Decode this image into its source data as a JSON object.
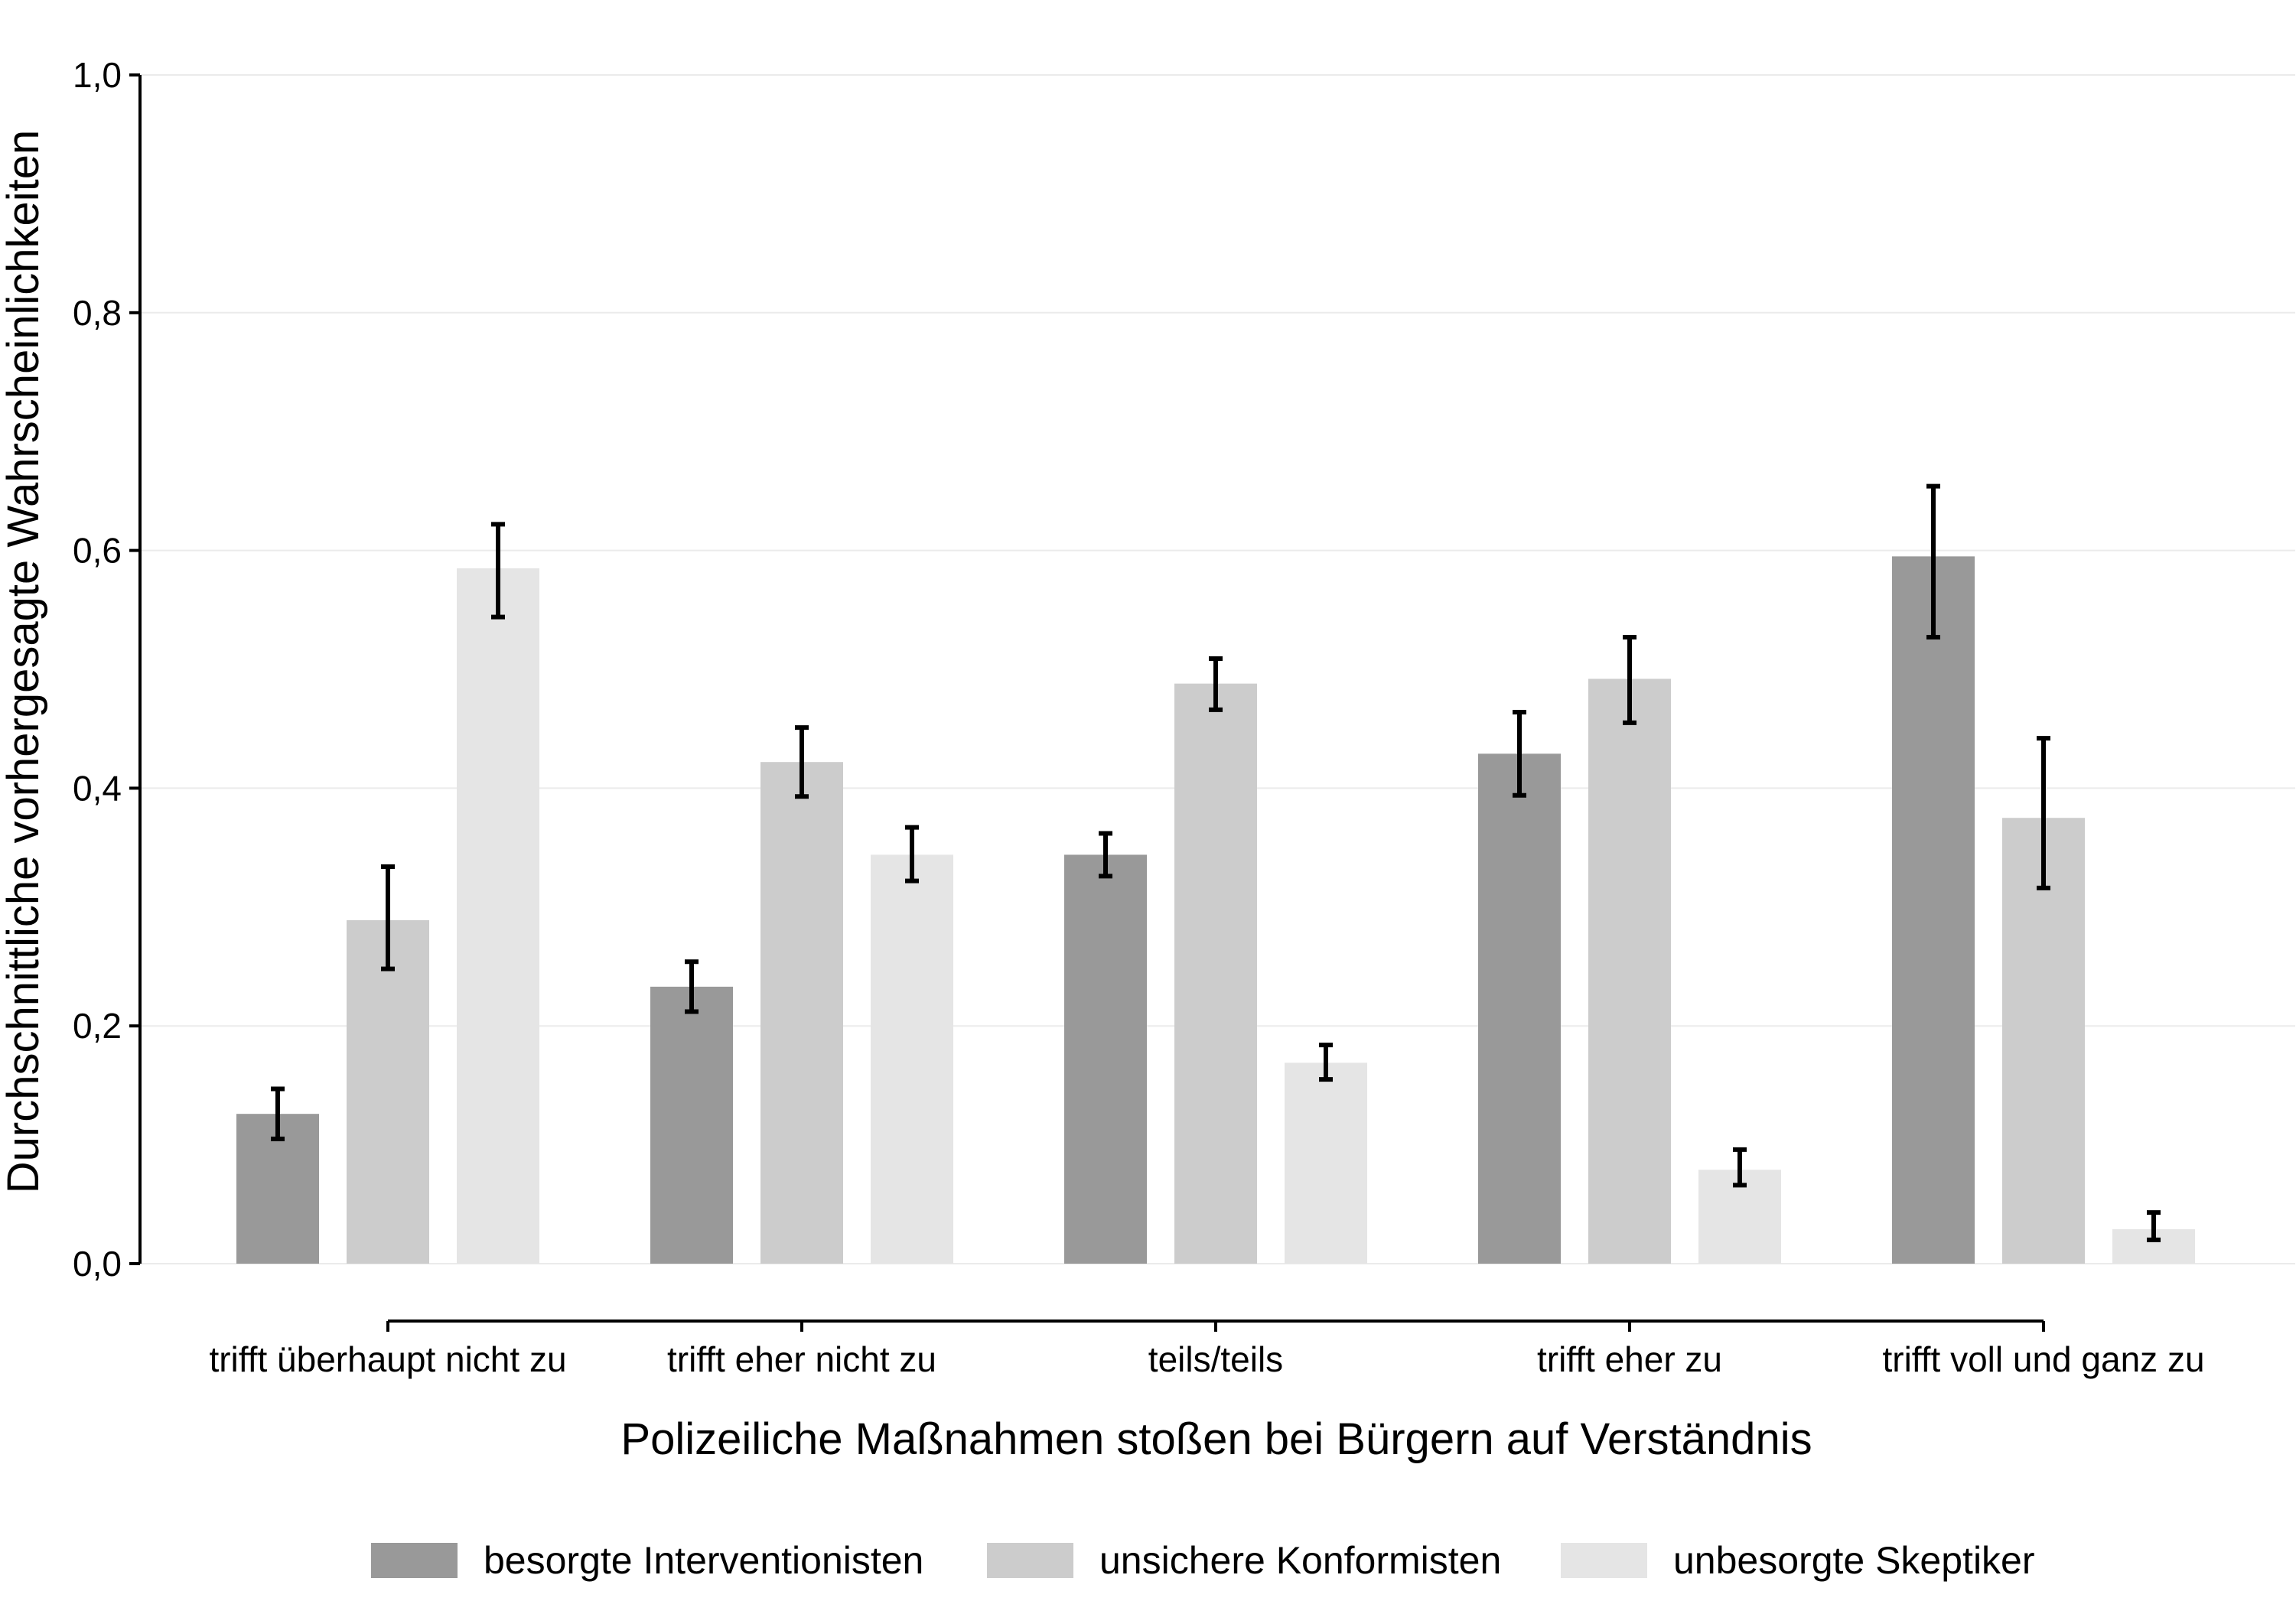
{
  "chart_data": {
    "type": "bar",
    "title": "",
    "xlabel": "Polizeiliche Maßnahmen stoßen bei Bürgern auf Verständnis",
    "ylabel": "Durchschnittliche vorhergesagte Wahrscheinlichkeiten",
    "categories": [
      "trifft überhaupt nicht zu",
      "trifft eher nicht zu",
      "teils/teils",
      "trifft eher zu",
      "trifft voll und ganz zu"
    ],
    "ylim": [
      0,
      1
    ],
    "yticks": [
      0,
      0.2,
      0.4,
      0.6,
      0.8,
      1.0
    ],
    "ytick_labels": [
      "0,0",
      "0,2",
      "0,4",
      "0,6",
      "0,8",
      "1,0"
    ],
    "grid": true,
    "legend_position": "bottom",
    "series": [
      {
        "name": "besorgte Interventionisten",
        "color": "#999999",
        "values": [
          0.126,
          0.233,
          0.344,
          0.429,
          0.595
        ],
        "ci_low": [
          0.105,
          0.212,
          0.326,
          0.394,
          0.527
        ],
        "ci_high": [
          0.147,
          0.254,
          0.362,
          0.464,
          0.654
        ]
      },
      {
        "name": "unsichere Konformisten",
        "color": "#cccccc",
        "values": [
          0.289,
          0.422,
          0.488,
          0.492,
          0.375
        ],
        "ci_low": [
          0.248,
          0.393,
          0.466,
          0.455,
          0.316
        ],
        "ci_high": [
          0.334,
          0.451,
          0.509,
          0.527,
          0.442
        ]
      },
      {
        "name": "unbesorgte Skeptiker",
        "color": "#e5e5e5",
        "values": [
          0.585,
          0.344,
          0.169,
          0.079,
          0.029
        ],
        "ci_low": [
          0.544,
          0.322,
          0.155,
          0.066,
          0.02
        ],
        "ci_high": [
          0.622,
          0.367,
          0.184,
          0.096,
          0.043
        ]
      }
    ]
  }
}
